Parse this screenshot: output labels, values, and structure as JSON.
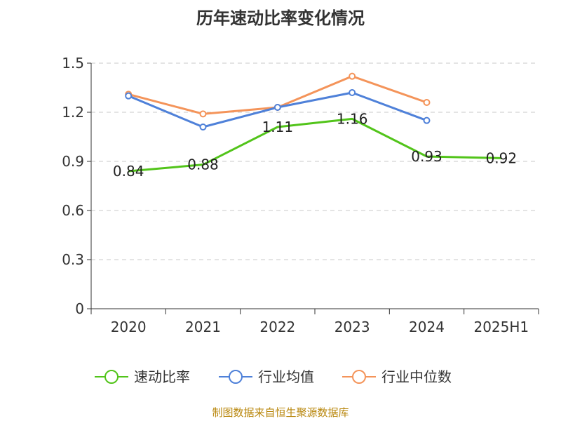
{
  "chart_data": {
    "type": "line",
    "title": "历年速动比率变化情况",
    "categories": [
      "2020",
      "2021",
      "2022",
      "2023",
      "2024",
      "2025H1"
    ],
    "ylim": [
      0,
      1.5
    ],
    "yticks": [
      "0",
      "0.3",
      "0.6",
      "0.9",
      "1.2",
      "1.5"
    ],
    "grid": true,
    "legend_position": "bottom",
    "series": [
      {
        "name": "速动比率",
        "color": "#52c41a",
        "values": [
          0.84,
          0.88,
          1.11,
          1.16,
          0.93,
          0.92
        ],
        "labels": [
          "0.84",
          "0.88",
          "1.11",
          "1.16",
          "0.93",
          "0.92"
        ],
        "markers": false
      },
      {
        "name": "行业均值",
        "color": "#4f81d9",
        "values": [
          1.3,
          1.11,
          1.23,
          1.32,
          1.15,
          null
        ],
        "markers": true
      },
      {
        "name": "行业中位数",
        "color": "#f4945a",
        "values": [
          1.31,
          1.19,
          1.23,
          1.42,
          1.26,
          null
        ],
        "markers": true
      }
    ],
    "source": "制图数据来自恒生聚源数据库"
  }
}
